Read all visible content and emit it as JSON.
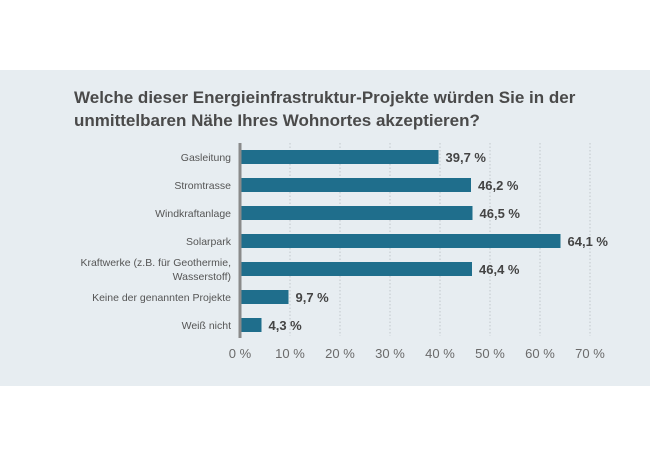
{
  "chart_data": {
    "type": "bar",
    "orientation": "horizontal",
    "title": "Welche dieser Energieinfrastruktur-Projekte würden Sie in der unmittelbaren Nähe Ihres Wohnortes akzeptieren?",
    "categories": [
      [
        "Gasleitung"
      ],
      [
        "Stromtrasse"
      ],
      [
        "Windkraftanlage"
      ],
      [
        "Solarpark"
      ],
      [
        "Kraftwerke (z.B. für Geothermie,",
        "Wasserstoff)"
      ],
      [
        "Keine der genannten Projekte"
      ],
      [
        "Weiß nicht"
      ]
    ],
    "values": [
      39.7,
      46.2,
      46.5,
      64.1,
      46.4,
      9.7,
      4.3
    ],
    "value_labels": [
      "39,7 %",
      "46,2 %",
      "46,5 %",
      "64,1 %",
      "46,4 %",
      "9,7 %",
      "4,3 %"
    ],
    "xticks": [
      0,
      10,
      20,
      30,
      40,
      50,
      60,
      70
    ],
    "xtick_labels": [
      "0 %",
      "10 %",
      "20 %",
      "30 %",
      "40 %",
      "50 %",
      "60 %",
      "70 %"
    ],
    "xlim": [
      0,
      70
    ],
    "grid": "vertical dashed",
    "xlabel": "",
    "ylabel": ""
  },
  "colors": {
    "bar": "#1f6e8c",
    "panel": "#e7edf1",
    "axis": "#8a8a8a",
    "grid": "#c2c8cc"
  }
}
